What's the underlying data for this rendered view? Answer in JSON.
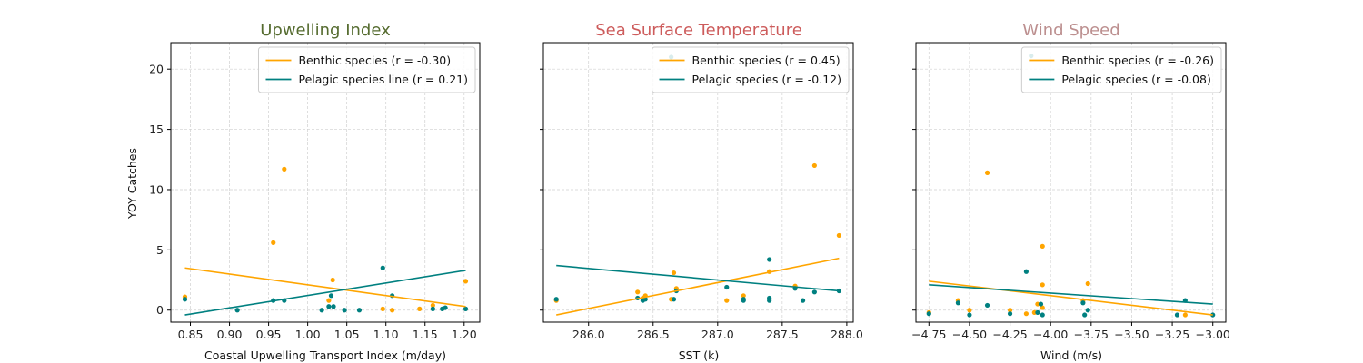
{
  "figure": {
    "ylabel": "YOY Catches",
    "colors": {
      "benthic": "#FFA500",
      "pelagic": "#008080"
    }
  },
  "chart_data": [
    {
      "type": "scatter",
      "title": "Upwelling Index",
      "title_color": "#556B2F",
      "xlabel": "Coastal Upwelling Transport Index (m/day)",
      "xlim": [
        0.825,
        1.22
      ],
      "ylim": [
        -1.0,
        22.2
      ],
      "xticks": [
        "0.85",
        "0.90",
        "0.95",
        "1.00",
        "1.05",
        "1.10",
        "1.15",
        "1.20"
      ],
      "yticks": [
        "0",
        "5",
        "10",
        "15",
        "20"
      ],
      "legend_position": "top-right",
      "series": [
        {
          "name": "Benthic species (r =  -0.30)",
          "color": "#FFA500",
          "points": [
            [
              0.843,
              1.1
            ],
            [
              0.956,
              5.6
            ],
            [
              0.97,
              11.7
            ],
            [
              1.027,
              0.8
            ],
            [
              1.032,
              2.5
            ],
            [
              1.096,
              0.1
            ],
            [
              1.108,
              0.0
            ],
            [
              1.143,
              0.1
            ],
            [
              1.16,
              0.4
            ],
            [
              1.202,
              2.4
            ]
          ],
          "fit": [
            [
              0.843,
              3.5
            ],
            [
              1.202,
              0.3
            ]
          ]
        },
        {
          "name": "Pelagic species line (r =  0.21)",
          "color": "#008080",
          "points": [
            [
              0.843,
              0.9
            ],
            [
              0.91,
              0.0
            ],
            [
              0.956,
              0.8
            ],
            [
              0.97,
              0.8
            ],
            [
              1.018,
              0.0
            ],
            [
              1.027,
              0.3
            ],
            [
              1.03,
              1.2
            ],
            [
              1.033,
              0.3
            ],
            [
              1.047,
              0.0
            ],
            [
              1.066,
              0.0
            ],
            [
              1.096,
              3.5
            ],
            [
              1.108,
              1.2
            ],
            [
              1.16,
              0.1
            ],
            [
              1.172,
              0.1
            ],
            [
              1.176,
              0.2
            ],
            [
              1.202,
              0.1
            ]
          ],
          "fit": [
            [
              0.843,
              -0.4
            ],
            [
              1.202,
              3.3
            ]
          ]
        }
      ]
    },
    {
      "type": "scatter",
      "title": "Sea Surface Temperature",
      "title_color": "#CD5C5C",
      "xlabel": "SST (k)",
      "xlim": [
        285.65,
        288.05
      ],
      "ylim": [
        -1.0,
        22.2
      ],
      "xticks": [
        "286.0",
        "286.5",
        "287.0",
        "287.5",
        "288.0"
      ],
      "yticks": [],
      "legend_position": "top-right",
      "series": [
        {
          "name": "Benthic species (r =  0.45)",
          "color": "#FFA500",
          "points": [
            [
              285.75,
              0.8
            ],
            [
              286.38,
              1.5
            ],
            [
              286.42,
              1.0
            ],
            [
              286.44,
              1.2
            ],
            [
              286.64,
              0.9
            ],
            [
              286.66,
              3.1
            ],
            [
              286.68,
              1.8
            ],
            [
              287.07,
              0.8
            ],
            [
              287.2,
              1.2
            ],
            [
              287.4,
              3.2
            ],
            [
              287.6,
              2.0
            ],
            [
              287.75,
              12.0
            ],
            [
              287.94,
              6.2
            ]
          ],
          "fit": [
            [
              285.75,
              -0.4
            ],
            [
              287.94,
              4.3
            ]
          ]
        },
        {
          "name": "Pelagic species (r =  -0.12)",
          "color": "#008080",
          "points": [
            [
              285.75,
              0.9
            ],
            [
              286.38,
              1.0
            ],
            [
              286.42,
              0.8
            ],
            [
              286.44,
              0.9
            ],
            [
              286.64,
              21.0
            ],
            [
              286.66,
              0.9
            ],
            [
              286.68,
              1.6
            ],
            [
              287.07,
              1.9
            ],
            [
              287.2,
              0.9
            ],
            [
              287.2,
              0.8
            ],
            [
              287.4,
              4.2
            ],
            [
              287.4,
              1.0
            ],
            [
              287.4,
              0.8
            ],
            [
              287.6,
              1.8
            ],
            [
              287.66,
              0.8
            ],
            [
              287.75,
              1.5
            ],
            [
              287.94,
              1.6
            ]
          ],
          "fit": [
            [
              285.75,
              3.7
            ],
            [
              287.94,
              1.6
            ]
          ]
        }
      ]
    },
    {
      "type": "scatter",
      "title": "Wind Speed",
      "title_color": "#BC8F8F",
      "xlabel": "Wind (m/s)",
      "xlim": [
        -4.83,
        -2.92
      ],
      "ylim": [
        -1.0,
        22.2
      ],
      "xticks": [
        "−4.75",
        "−4.50",
        "−4.25",
        "−4.00",
        "−3.75",
        "−3.50",
        "−3.25",
        "−3.00"
      ],
      "yticks": [],
      "legend_position": "top-right",
      "series": [
        {
          "name": "Benthic species (r =  -0.26)",
          "color": "#FFA500",
          "points": [
            [
              -4.75,
              -0.2
            ],
            [
              -4.57,
              0.8
            ],
            [
              -4.5,
              0.0
            ],
            [
              -4.39,
              11.4
            ],
            [
              -4.25,
              0.0
            ],
            [
              -4.15,
              -0.3
            ],
            [
              -4.1,
              -0.2
            ],
            [
              -4.08,
              0.5
            ],
            [
              -4.05,
              5.3
            ],
            [
              -4.05,
              2.1
            ],
            [
              -4.05,
              0.2
            ],
            [
              -3.8,
              0.8
            ],
            [
              -3.77,
              2.2
            ],
            [
              -3.17,
              -0.4
            ]
          ],
          "fit": [
            [
              -4.75,
              2.4
            ],
            [
              -3.0,
              -0.4
            ]
          ]
        },
        {
          "name": "Pelagic species (r =  -0.08)",
          "color": "#008080",
          "points": [
            [
              -4.75,
              -0.3
            ],
            [
              -4.57,
              0.6
            ],
            [
              -4.5,
              -0.4
            ],
            [
              -4.39,
              0.4
            ],
            [
              -4.25,
              -0.3
            ],
            [
              -4.15,
              3.2
            ],
            [
              -4.12,
              21.1
            ],
            [
              -4.08,
              -0.2
            ],
            [
              -4.06,
              0.5
            ],
            [
              -4.05,
              -0.4
            ],
            [
              -3.8,
              0.6
            ],
            [
              -3.79,
              -0.4
            ],
            [
              -3.77,
              0.0
            ],
            [
              -3.22,
              -0.4
            ],
            [
              -3.17,
              0.8
            ],
            [
              -3.0,
              -0.4
            ]
          ],
          "fit": [
            [
              -4.75,
              2.1
            ],
            [
              -3.0,
              0.5
            ]
          ]
        }
      ]
    }
  ]
}
